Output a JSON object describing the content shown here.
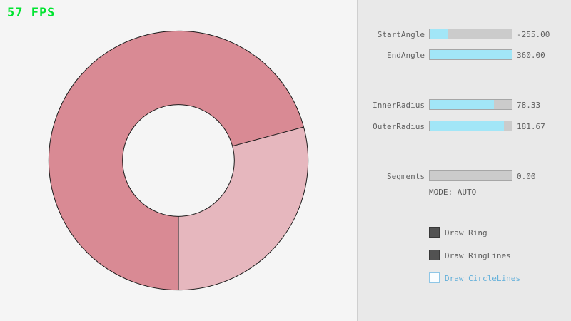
{
  "window": {
    "fps_label": "57 FPS"
  },
  "colors": {
    "fps_green": "#00e430",
    "slider_fill": "#a2e6f7",
    "ring_light": "#e6b7be",
    "ring_dark": "#d98a94",
    "ring_outline": "#1a1a1a",
    "checkbox_checked_fill": "#525252",
    "checkbox_unchecked_border": "#8ec6e6",
    "blue_label": "#64b0da"
  },
  "panel": {
    "sliders": [
      {
        "label": "StartAngle",
        "value": "-255.00",
        "fill_percent": 21.7
      },
      {
        "label": "EndAngle",
        "value": "360.00",
        "fill_percent": 100
      },
      {
        "label": "InnerRadius",
        "value": "78.33",
        "fill_percent": 78.3
      },
      {
        "label": "OuterRadius",
        "value": "181.67",
        "fill_percent": 90.8
      },
      {
        "label": "Segments",
        "value": "0.00",
        "fill_percent": 0
      }
    ],
    "mode_label": "MODE: AUTO",
    "checkboxes": [
      {
        "label": "Draw Ring",
        "checked": true
      },
      {
        "label": "Draw RingLines",
        "checked": true
      },
      {
        "label": "Draw CircleLines",
        "checked": false
      }
    ]
  }
}
